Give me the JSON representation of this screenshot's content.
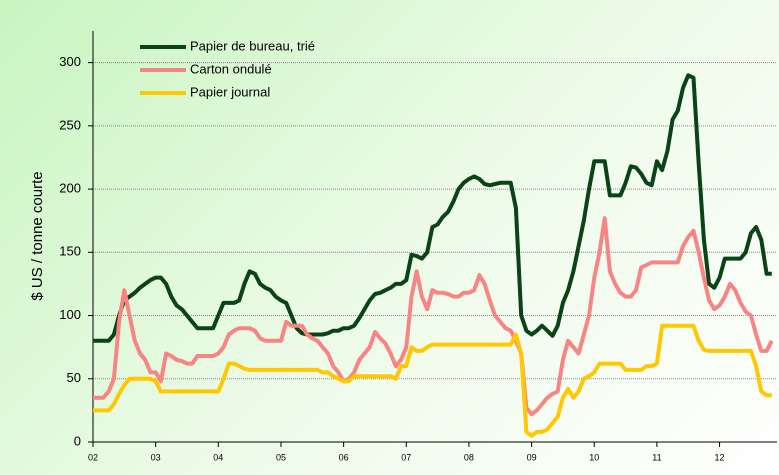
{
  "chart_data": {
    "type": "line",
    "ylabel": "$ US / tonne courte",
    "x": [
      0,
      1,
      2,
      3,
      4,
      5,
      6,
      7,
      8,
      9,
      10,
      11,
      12,
      13,
      14,
      15,
      16,
      17,
      18,
      19,
      20,
      21,
      22,
      23,
      24,
      25,
      26,
      27,
      28,
      29,
      30,
      31,
      32,
      33,
      34,
      35,
      36,
      37,
      38,
      39,
      40,
      41,
      42,
      43,
      44,
      45,
      46,
      47,
      48,
      49,
      50,
      51,
      52,
      53,
      54,
      55,
      56,
      57,
      58,
      59,
      60,
      61,
      62,
      63,
      64,
      65,
      66,
      67,
      68,
      69,
      70,
      71,
      72,
      73,
      74,
      75,
      76,
      77,
      78,
      79,
      80,
      81,
      82,
      83,
      84,
      85,
      86,
      87,
      88,
      89,
      90,
      91,
      92,
      93,
      94,
      95,
      96,
      97,
      98,
      99,
      100,
      101,
      102,
      103,
      104,
      105,
      106,
      107,
      108,
      109,
      110,
      111,
      112,
      113,
      114,
      115,
      116,
      117,
      118,
      119,
      120,
      121,
      122,
      123,
      124,
      125,
      126,
      127,
      128,
      129,
      130
    ],
    "series": [
      {
        "name": "Papier de bureau, trié",
        "color": "#0a4416",
        "values": [
          80,
          80,
          80,
          80,
          85,
          100,
          112,
          115,
          118,
          122,
          125,
          128,
          130,
          130,
          125,
          115,
          108,
          105,
          100,
          95,
          90,
          90,
          90,
          90,
          100,
          110,
          110,
          110,
          112,
          125,
          135,
          133,
          125,
          122,
          120,
          115,
          112,
          110,
          100,
          90,
          86,
          85,
          85,
          85,
          85,
          86,
          88,
          88,
          90,
          90,
          92,
          98,
          105,
          112,
          117,
          118,
          120,
          122,
          125,
          125,
          128,
          148,
          147,
          145,
          150,
          170,
          172,
          178,
          182,
          190,
          200,
          205,
          208,
          210,
          208,
          204,
          203,
          204,
          205,
          205,
          205,
          185,
          100,
          88,
          85,
          88,
          92,
          88,
          84,
          92,
          110,
          120,
          135,
          155,
          175,
          200,
          222,
          222,
          222,
          195,
          195,
          195,
          205,
          218,
          217,
          212,
          205,
          203,
          222,
          215,
          230,
          255,
          262,
          280,
          290,
          288,
          220,
          160,
          125,
          122,
          130,
          145,
          145,
          145,
          145,
          150,
          165,
          170,
          160,
          133,
          133
        ]
      },
      {
        "name": "Carton ondulé",
        "color": "#f88484",
        "values": [
          35,
          35,
          35,
          40,
          50,
          95,
          120,
          100,
          80,
          70,
          65,
          55,
          55,
          48,
          70,
          68,
          65,
          64,
          62,
          62,
          68,
          68,
          68,
          68,
          70,
          75,
          85,
          88,
          90,
          90,
          90,
          88,
          82,
          80,
          80,
          80,
          80,
          95,
          92,
          92,
          92,
          85,
          82,
          80,
          75,
          70,
          60,
          55,
          48,
          50,
          55,
          65,
          70,
          75,
          87,
          82,
          78,
          70,
          60,
          65,
          75,
          115,
          135,
          115,
          105,
          120,
          118,
          118,
          117,
          115,
          115,
          118,
          118,
          120,
          132,
          125,
          112,
          100,
          95,
          90,
          88,
          80,
          70,
          27,
          22,
          25,
          30,
          35,
          38,
          40,
          65,
          80,
          75,
          70,
          85,
          100,
          130,
          150,
          177,
          135,
          125,
          118,
          115,
          115,
          120,
          138,
          140,
          142,
          142,
          142,
          142,
          142,
          142,
          155,
          162,
          167,
          150,
          130,
          112,
          105,
          108,
          115,
          125,
          120,
          110,
          103,
          100,
          85,
          72,
          72,
          80
        ]
      },
      {
        "name": "Papier journal",
        "color": "#ffc800",
        "values": [
          25,
          25,
          25,
          25,
          30,
          38,
          45,
          50,
          50,
          50,
          50,
          50,
          48,
          40,
          40,
          40,
          40,
          40,
          40,
          40,
          40,
          40,
          40,
          40,
          40,
          50,
          62,
          62,
          60,
          58,
          57,
          57,
          57,
          57,
          57,
          57,
          57,
          57,
          57,
          57,
          57,
          57,
          57,
          57,
          55,
          55,
          52,
          50,
          48,
          48,
          52,
          52,
          52,
          52,
          52,
          52,
          52,
          52,
          50,
          60,
          60,
          75,
          72,
          72,
          75,
          77,
          77,
          77,
          77,
          77,
          77,
          77,
          77,
          77,
          77,
          77,
          77,
          77,
          77,
          77,
          77,
          85,
          70,
          8,
          5,
          8,
          8,
          10,
          15,
          20,
          35,
          42,
          35,
          40,
          50,
          52,
          55,
          62,
          62,
          62,
          62,
          62,
          57,
          57,
          57,
          57,
          60,
          60,
          62,
          92,
          92,
          92,
          92,
          92,
          92,
          92,
          80,
          73,
          72,
          72,
          72,
          72,
          72,
          72,
          72,
          72,
          72,
          60,
          40,
          37,
          37
        ]
      }
    ],
    "xlim": [
      0,
      131
    ],
    "xticks": [
      {
        "value": 0,
        "label": "02"
      },
      {
        "value": 12,
        "label": "03"
      },
      {
        "value": 24,
        "label": "04"
      },
      {
        "value": 36,
        "label": "05"
      },
      {
        "value": 48,
        "label": "06"
      },
      {
        "value": 60,
        "label": "07"
      },
      {
        "value": 72,
        "label": "08"
      },
      {
        "value": 84,
        "label": "09"
      },
      {
        "value": 96,
        "label": "10"
      },
      {
        "value": 108,
        "label": "11"
      },
      {
        "value": 120,
        "label": "12"
      }
    ],
    "ylim": [
      0,
      325
    ],
    "yticks": [
      0,
      50,
      100,
      150,
      200,
      250,
      300
    ],
    "grid": true,
    "legend": "upper left"
  }
}
